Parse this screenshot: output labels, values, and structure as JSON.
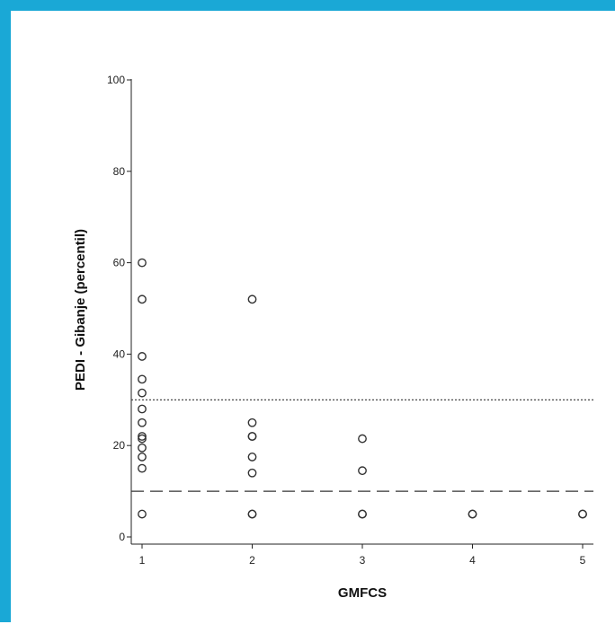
{
  "chart_data": {
    "type": "scatter",
    "title": "",
    "xlabel": "GMFCS",
    "ylabel": "PEDI - Gibanje (percentil)",
    "xlim": [
      1,
      5
    ],
    "ylim": [
      0,
      100
    ],
    "x_ticks": [
      1,
      2,
      3,
      4,
      5
    ],
    "y_ticks": [
      0,
      20,
      40,
      60,
      80,
      100
    ],
    "grid": false,
    "legend": "none",
    "points": [
      {
        "x": 1,
        "y": 60
      },
      {
        "x": 1,
        "y": 52
      },
      {
        "x": 1,
        "y": 39.5
      },
      {
        "x": 1,
        "y": 34.5
      },
      {
        "x": 1,
        "y": 31.5
      },
      {
        "x": 1,
        "y": 28
      },
      {
        "x": 1,
        "y": 25
      },
      {
        "x": 1,
        "y": 22
      },
      {
        "x": 1,
        "y": 21.5
      },
      {
        "x": 1,
        "y": 19.5
      },
      {
        "x": 1,
        "y": 17.5
      },
      {
        "x": 1,
        "y": 15
      },
      {
        "x": 1,
        "y": 5
      },
      {
        "x": 2,
        "y": 52
      },
      {
        "x": 2,
        "y": 25
      },
      {
        "x": 2,
        "y": 22
      },
      {
        "x": 2,
        "y": 22
      },
      {
        "x": 2,
        "y": 17.5
      },
      {
        "x": 2,
        "y": 14
      },
      {
        "x": 2,
        "y": 5
      },
      {
        "x": 2,
        "y": 5
      },
      {
        "x": 3,
        "y": 21.5
      },
      {
        "x": 3,
        "y": 14.5
      },
      {
        "x": 3,
        "y": 5
      },
      {
        "x": 3,
        "y": 5
      },
      {
        "x": 4,
        "y": 5
      },
      {
        "x": 4,
        "y": 5
      },
      {
        "x": 5,
        "y": 5
      },
      {
        "x": 5,
        "y": 5
      }
    ],
    "reference_lines": [
      {
        "y": 30,
        "style": "dotted"
      },
      {
        "y": 10,
        "style": "dashed"
      }
    ],
    "colors": {
      "frame": "#1aa8d6",
      "axis": "#222222",
      "marker": "#333333"
    }
  }
}
